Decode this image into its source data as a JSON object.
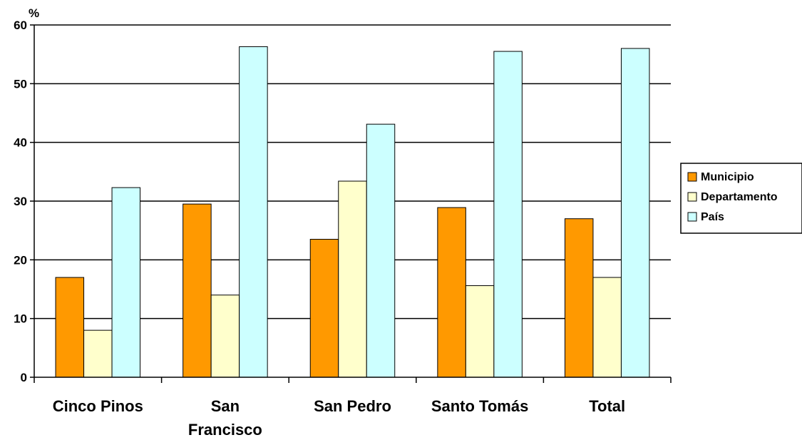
{
  "chart_data": {
    "type": "bar",
    "ylabel": "%",
    "ylim": [
      0,
      60
    ],
    "yticks": [
      0,
      10,
      20,
      30,
      40,
      50,
      60
    ],
    "grid": true,
    "legend_position": "right",
    "categories": [
      [
        "Cinco Pinos"
      ],
      [
        "San",
        "Francisco"
      ],
      [
        "San Pedro"
      ],
      [
        "Santo Tomás"
      ],
      [
        "Total"
      ]
    ],
    "series": [
      {
        "name": "Municipio",
        "color": "#FF9900",
        "values": [
          17,
          29.5,
          23.5,
          28.9,
          27
        ]
      },
      {
        "name": "Departamento",
        "color": "#FFFFCC",
        "values": [
          8,
          14,
          33.4,
          15.6,
          17
        ]
      },
      {
        "name": "País",
        "color": "#CCFFFF",
        "values": [
          32.3,
          56.3,
          43.1,
          55.5,
          56
        ]
      }
    ]
  }
}
